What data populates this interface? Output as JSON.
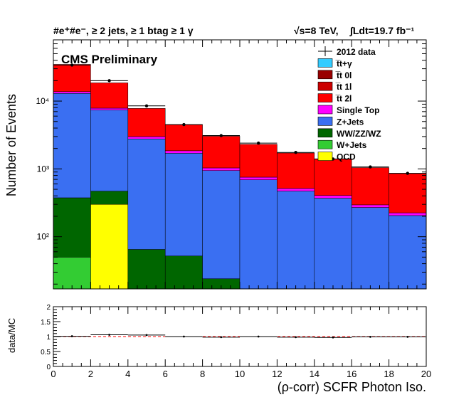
{
  "chart_data": [
    {
      "type": "bar",
      "stacked": true,
      "title": "#e⁺#e⁻, ≥ 2 jets, ≥ 1 btag ≥ 1 γ",
      "energy_label": "√s=8 TeV,",
      "lumi_label": "∫Ldt=19.7 fb⁻¹",
      "annotation": "CMS Preliminary",
      "xlabel": "(ρ-corr) SCFR Photon Iso.",
      "ylabel": "Number of Events",
      "yscale": "log",
      "xlim": [
        0,
        20
      ],
      "ylim": [
        17,
        80000
      ],
      "x_tick_labels": [
        "0",
        "2",
        "4",
        "6",
        "8",
        "10",
        "12",
        "14",
        "16",
        "18",
        "20"
      ],
      "y_tick_labels": [
        "10²",
        "10³",
        "10⁴"
      ],
      "bin_edges": [
        0,
        2,
        4,
        6,
        8,
        10,
        12,
        14,
        16,
        18,
        20
      ],
      "series": [
        {
          "name": "QCD",
          "color": "#ffff00",
          "values": [
            0,
            300,
            0,
            0,
            0,
            0,
            0,
            0,
            0,
            0
          ]
        },
        {
          "name": "W+Jets",
          "color": "#33cc33",
          "values": [
            50,
            0,
            0,
            0,
            0,
            0,
            0,
            0,
            0,
            0
          ]
        },
        {
          "name": "WW/ZZ/WZ",
          "color": "#006600",
          "values": [
            325,
            170,
            65,
            52,
            24,
            0,
            0,
            0,
            0,
            0
          ]
        },
        {
          "name": "Z+Jets",
          "color": "#3a6ff2",
          "values": [
            12600,
            6900,
            2700,
            1650,
            920,
            690,
            470,
            370,
            270,
            205
          ]
        },
        {
          "name": "Single Top",
          "color": "#ff00ff",
          "values": [
            800,
            500,
            230,
            150,
            90,
            65,
            45,
            35,
            25,
            20
          ]
        },
        {
          "name": "t̅t 2l",
          "color": "#ff0000",
          "values": [
            21000,
            10700,
            4800,
            2650,
            2000,
            1550,
            1200,
            1000,
            750,
            630
          ]
        },
        {
          "name": "t̅t 1l",
          "color": "#cc0000",
          "values": [
            0,
            0,
            0,
            0,
            0,
            0,
            0,
            0,
            0,
            0
          ]
        },
        {
          "name": "t̅t 0l",
          "color": "#990000",
          "values": [
            0,
            0,
            0,
            0,
            0,
            0,
            0,
            0,
            0,
            0
          ]
        },
        {
          "name": "t̅t+γ",
          "color": "#33ccff",
          "values": [
            0,
            0,
            0,
            0,
            0,
            0,
            0,
            0,
            0,
            0
          ]
        }
      ],
      "data_points": {
        "name": "2012 data",
        "x": [
          1,
          3,
          5,
          7,
          9,
          11,
          13,
          15,
          17,
          19
        ],
        "y": [
          34000,
          20000,
          8500,
          4500,
          3100,
          2400,
          1750,
          1400,
          1070,
          860
        ]
      },
      "legend_order": [
        "2012 data",
        "t̅t+γ",
        "t̅t 0l",
        "t̅t 1l",
        "t̅t 2l",
        "Single Top",
        "Z+Jets",
        "WW/ZZ/WZ",
        "W+Jets",
        "QCD"
      ],
      "legend_placement": "top-right"
    },
    {
      "type": "scatter",
      "ylabel": "data/MC",
      "xlim": [
        0,
        20
      ],
      "ylim": [
        0,
        2
      ],
      "y_tick_labels": [
        "0",
        "0.5",
        "1",
        "1.5",
        "2"
      ],
      "x": [
        1,
        3,
        5,
        7,
        9,
        11,
        13,
        15,
        17,
        19
      ],
      "y": [
        1.01,
        1.06,
        1.05,
        1.0,
        0.98,
        1.0,
        0.98,
        0.97,
        0.99,
        0.99
      ],
      "reference_line": 1
    }
  ]
}
